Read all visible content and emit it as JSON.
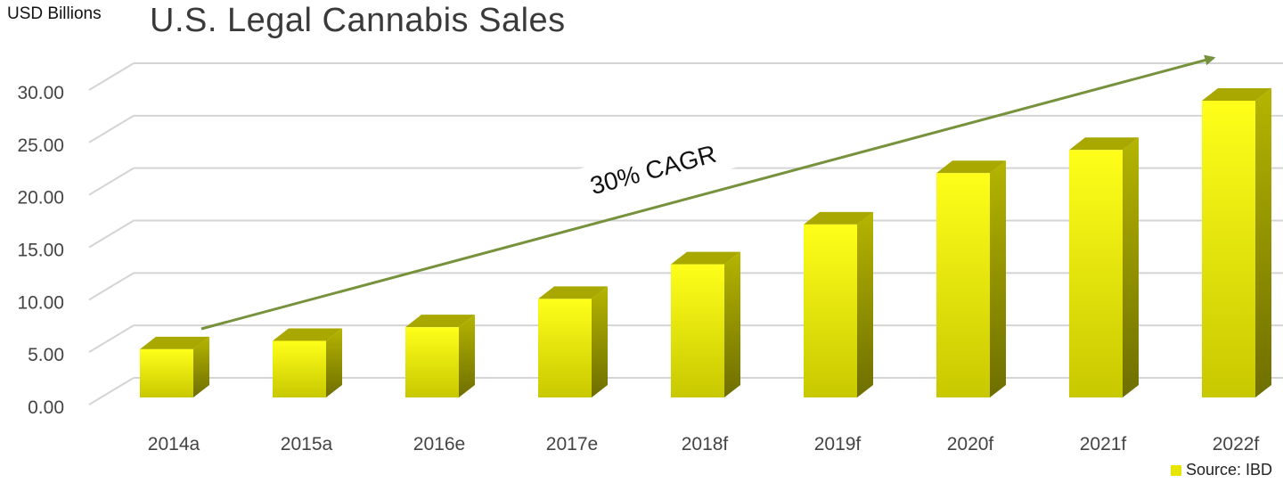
{
  "chart_data": {
    "type": "bar",
    "title": "U.S. Legal Cannabis Sales",
    "ylabel": "USD Billions",
    "xlabel": "",
    "categories": [
      "2014a",
      "2015a",
      "2016e",
      "2017e",
      "2018f",
      "2019f",
      "2020f",
      "2021f",
      "2022f"
    ],
    "values": [
      4.6,
      5.4,
      6.7,
      9.4,
      12.7,
      16.5,
      21.4,
      23.6,
      28.3
    ],
    "ylim": [
      0,
      30
    ],
    "yticks": [
      "0.00",
      "5.00",
      "10.00",
      "15.00",
      "20.00",
      "25.00",
      "30.00"
    ],
    "grid": true,
    "style": "3d-column",
    "bar_color": "#e6e600",
    "annotation": {
      "text": "30% CAGR",
      "arrow_color": "#76923c"
    },
    "legend": {
      "label": "Source: IBD",
      "placement": "bottom-right"
    }
  }
}
